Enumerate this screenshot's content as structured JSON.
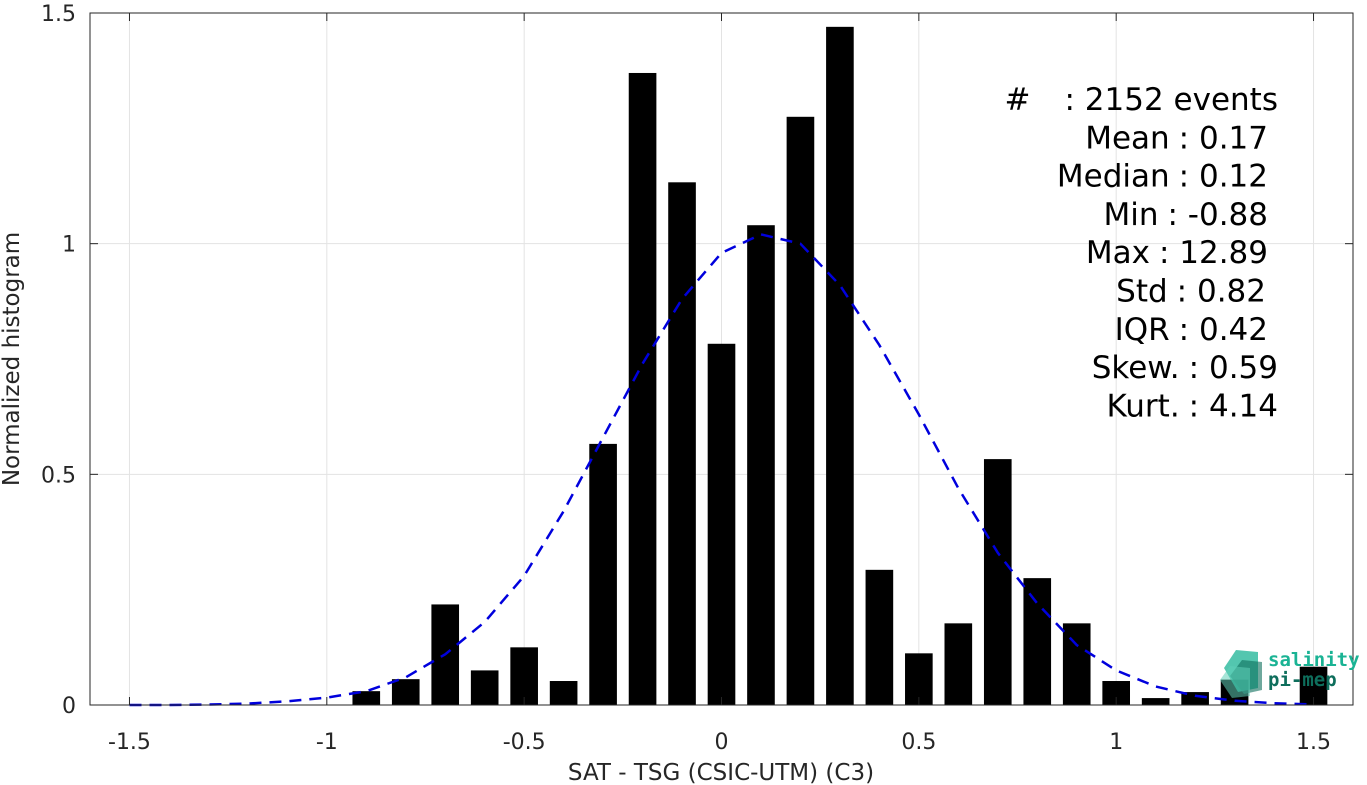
{
  "chart_data": {
    "type": "bar",
    "xlabel": "SAT - TSG (CSIC-UTM) (C3)",
    "ylabel": "Normalized histogram",
    "xlim": [
      -1.6,
      1.6
    ],
    "ylim": [
      0,
      1.5
    ],
    "grid": true,
    "x_ticks": [
      -1.5,
      -1,
      -0.5,
      0,
      0.5,
      1,
      1.5
    ],
    "x_tick_labels": [
      "-1.5",
      "-1",
      "-0.5",
      "0",
      "0.5",
      "1",
      "1.5"
    ],
    "y_ticks": [
      0,
      0.5,
      1,
      1.5
    ],
    "y_tick_labels": [
      "0",
      "0.5",
      "1",
      "1.5"
    ],
    "bar_width": 0.07,
    "bars": {
      "x": [
        -0.9,
        -0.8,
        -0.7,
        -0.6,
        -0.5,
        -0.4,
        -0.3,
        -0.2,
        -0.1,
        0.0,
        0.1,
        0.2,
        0.3,
        0.4,
        0.5,
        0.6,
        0.7,
        0.8,
        0.9,
        1.0,
        1.1,
        1.2,
        1.3,
        1.4,
        1.5
      ],
      "values": [
        0.03,
        0.056,
        0.218,
        0.075,
        0.125,
        0.052,
        0.566,
        1.37,
        1.133,
        0.783,
        1.04,
        1.275,
        1.47,
        0.293,
        0.112,
        0.177,
        0.533,
        0.275,
        0.177,
        0.052,
        0.015,
        0.028,
        0.055,
        0.0,
        0.083
      ],
      "color": "#000000"
    },
    "fit_curve": {
      "style": "dashed",
      "color": "#0000dd",
      "mean": 0.12,
      "std": 0.39,
      "x": [
        -1.5,
        -1.4,
        -1.3,
        -1.2,
        -1.1,
        -1.0,
        -0.9,
        -0.8,
        -0.7,
        -0.6,
        -0.5,
        -0.4,
        -0.3,
        -0.2,
        -0.1,
        0.0,
        0.1,
        0.2,
        0.3,
        0.4,
        0.5,
        0.6,
        0.7,
        0.8,
        0.9,
        1.0,
        1.1,
        1.2,
        1.3,
        1.4,
        1.5
      ],
      "y": [
        0.0,
        0.0,
        0.001,
        0.003,
        0.008,
        0.016,
        0.03,
        0.06,
        0.11,
        0.18,
        0.28,
        0.42,
        0.58,
        0.74,
        0.88,
        0.98,
        1.02,
        1.0,
        0.91,
        0.78,
        0.63,
        0.47,
        0.33,
        0.22,
        0.13,
        0.075,
        0.04,
        0.02,
        0.009,
        0.004,
        0.001
      ]
    },
    "stats": [
      {
        "label": "#",
        "value": ": 2152 events"
      },
      {
        "label": "Mean",
        "value": ": 0.17"
      },
      {
        "label": "Median",
        "value": ": 0.12"
      },
      {
        "label": "Min",
        "value": ": -0.88"
      },
      {
        "label": "Max",
        "value": ": 12.89"
      },
      {
        "label": "Std",
        "value": ": 0.82"
      },
      {
        "label": "IQR",
        "value": ": 0.42"
      },
      {
        "label": "Skew.",
        "value": ": 0.59"
      },
      {
        "label": "Kurt.",
        "value": ": 4.14"
      }
    ]
  },
  "logo": {
    "line1": "salinity",
    "line2": "pi-mep",
    "color1": "#1ab394",
    "color2": "#0e6e5c"
  }
}
